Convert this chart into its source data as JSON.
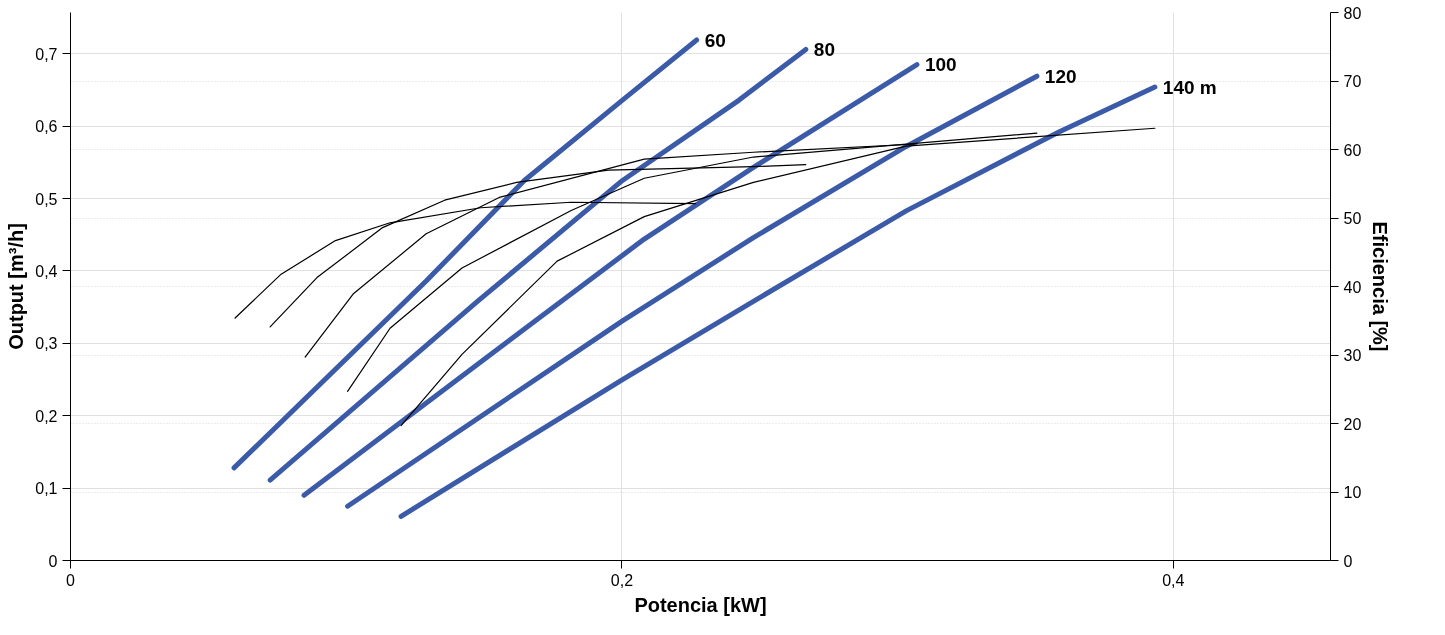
{
  "chart_data": {
    "type": "line",
    "xlabel": "Potencia [kW]",
    "ylabel": "Output [m³/h]",
    "y2label": "Eficiencia [%]",
    "xlim": [
      0,
      0.457
    ],
    "ylim": [
      0,
      0.757
    ],
    "y2lim": [
      0,
      80
    ],
    "xticks": [
      0,
      {
        "value": 0.2,
        "label": "0,2"
      },
      {
        "value": 0.4,
        "label": "0,4"
      }
    ],
    "yticks": [
      0,
      {
        "value": 0.1,
        "label": "0,1"
      },
      {
        "value": 0.2,
        "label": "0,2"
      },
      {
        "value": 0.3,
        "label": "0,3"
      },
      {
        "value": 0.4,
        "label": "0,4"
      },
      {
        "value": 0.5,
        "label": "0,5"
      },
      {
        "value": 0.6,
        "label": "0,6"
      },
      {
        "value": 0.7,
        "label": "0,7"
      }
    ],
    "y2ticks": [
      0,
      10,
      20,
      30,
      40,
      50,
      60,
      70,
      80
    ],
    "grid": true,
    "marker": "none",
    "line_style": "solid",
    "series": [
      {
        "name": "60",
        "color": "#3b5ba9",
        "x": [
          0.0593,
          0.129,
          0.1646,
          0.2002,
          0.2271
        ],
        "values": [
          0.128,
          0.386,
          0.525,
          0.636,
          0.719
        ]
      },
      {
        "name": "80",
        "color": "#3b5ba9",
        "x": [
          0.0724,
          0.1476,
          0.2002,
          0.2425,
          0.2667
        ],
        "values": [
          0.111,
          0.358,
          0.525,
          0.636,
          0.706
        ]
      },
      {
        "name": "100",
        "color": "#3b5ba9",
        "x": [
          0.0847,
          0.1685,
          0.2081,
          0.2477,
          0.307
        ],
        "values": [
          0.09,
          0.331,
          0.444,
          0.543,
          0.685
        ]
      },
      {
        "name": "120",
        "color": "#3b5ba9",
        "x": [
          0.1005,
          0.2002,
          0.2477,
          0.3031,
          0.3505
        ],
        "values": [
          0.075,
          0.331,
          0.446,
          0.572,
          0.669
        ]
      },
      {
        "name": "140 m",
        "color": "#3b5ba9",
        "x": [
          0.1199,
          0.2002,
          0.2477,
          0.3031,
          0.3585,
          0.3933
        ],
        "values": [
          0.061,
          0.25,
          0.358,
          0.483,
          0.592,
          0.654
        ]
      },
      {
        "color": "#000000",
        "axis": "y2",
        "x": [
          0.0597,
          0.0764,
          0.0961,
          0.1159,
          0.1488,
          0.1816,
          0.2267
        ],
        "values": [
          35.4,
          41.8,
          46.7,
          49.3,
          51.5,
          52.3,
          52.1
        ]
      },
      {
        "color": "#000000",
        "axis": "y2",
        "x": [
          0.0724,
          0.0894,
          0.1132,
          0.1357,
          0.1618,
          0.1951,
          0.2477,
          0.2667
        ],
        "values": [
          34.1,
          41.3,
          48.6,
          52.6,
          55.2,
          57.0,
          57.5,
          57.8
        ]
      },
      {
        "color": "#000000",
        "axis": "y2",
        "x": [
          0.0851,
          0.1025,
          0.129,
          0.1555,
          0.2081,
          0.2477,
          0.307
        ],
        "values": [
          29.7,
          38.9,
          47.7,
          53.0,
          58.6,
          59.6,
          60.8
        ]
      },
      {
        "color": "#000000",
        "axis": "y2",
        "x": [
          0.1005,
          0.1159,
          0.142,
          0.1816,
          0.2081,
          0.2477,
          0.3505
        ],
        "values": [
          24.7,
          33.9,
          42.7,
          51.1,
          55.8,
          58.9,
          62.4
        ]
      },
      {
        "color": "#000000",
        "axis": "y2",
        "x": [
          0.1199,
          0.142,
          0.1765,
          0.2081,
          0.2477,
          0.3031,
          0.3933
        ],
        "values": [
          19.7,
          30.1,
          43.7,
          50.2,
          55.2,
          60.5,
          63.1
        ]
      }
    ]
  }
}
